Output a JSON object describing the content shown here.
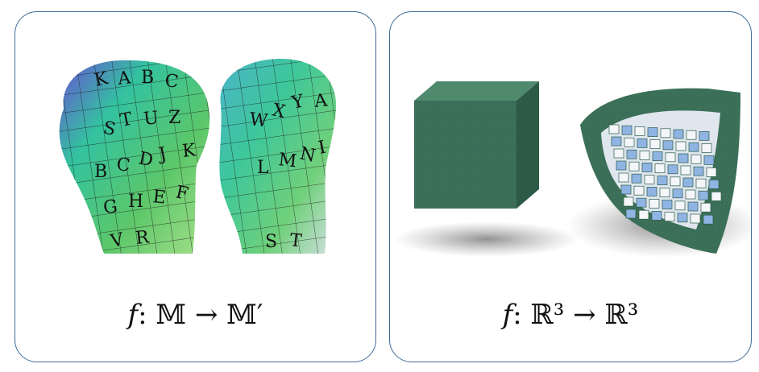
{
  "panels": [
    {
      "formula": {
        "f": "f",
        "sep": ": ",
        "domain": "𝕄",
        "arrow": " → ",
        "codomain": "𝕄′"
      },
      "glyphs": [
        "K",
        "A",
        "B",
        "C",
        "S",
        "T",
        "U",
        "Z",
        "W",
        "X",
        "Y",
        "A",
        "B",
        "C",
        "D",
        "J",
        "K",
        "L",
        "M",
        "N",
        "I",
        "G",
        "H",
        "E",
        "F",
        "V",
        "R",
        "S",
        "T"
      ]
    },
    {
      "formula": {
        "f": "f",
        "sep": ": ",
        "domain": "ℝ³",
        "arrow": " → ",
        "codomain": "ℝ³"
      }
    }
  ],
  "colors": {
    "border": "#3f6b96",
    "cube": "#3c7059",
    "cube_dark": "#2c5a46",
    "grid_light": "#dfe6ee",
    "grid_blue": "#8fb4e4"
  }
}
